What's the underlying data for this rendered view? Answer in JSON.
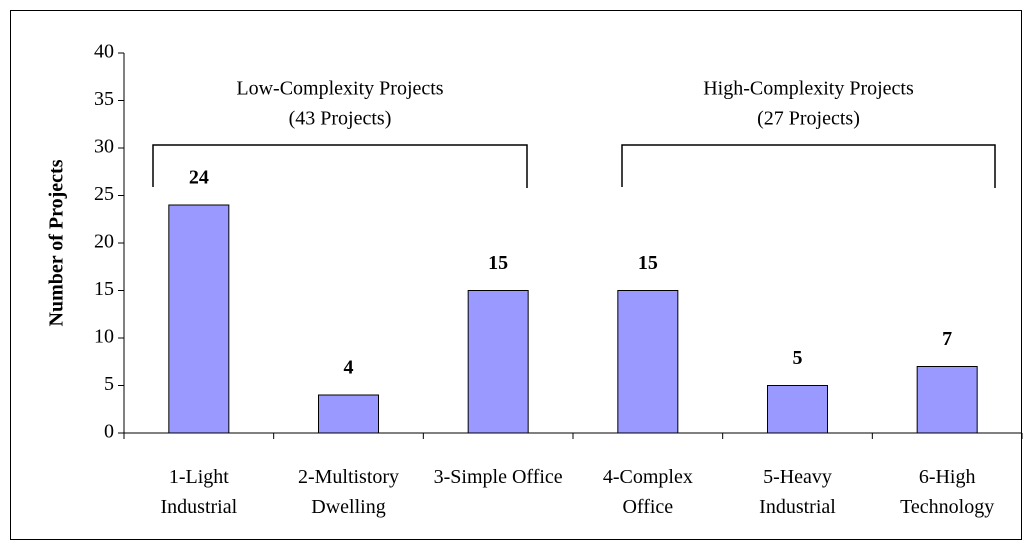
{
  "chart_data": {
    "type": "bar",
    "y_axis_label": "Number of Projects",
    "categories": [
      "1-Light Industrial",
      "2-Multistory Dwelling",
      "3-Simple Office",
      "4-Complex Office",
      "5-Heavy Industrial",
      "6-High Technology"
    ],
    "values": [
      24,
      4,
      15,
      15,
      5,
      7
    ],
    "color": "#9999ff",
    "ylim": [
      0,
      40
    ],
    "yticks": [
      0,
      5,
      10,
      15,
      20,
      25,
      30,
      35,
      40
    ],
    "grid": false,
    "annotations": [
      {
        "text": "Low-Complexity Projects",
        "subtext": "(43 Projects)"
      },
      {
        "text": "High-Complexity Projects",
        "subtext": "(27 Projects)"
      }
    ]
  }
}
